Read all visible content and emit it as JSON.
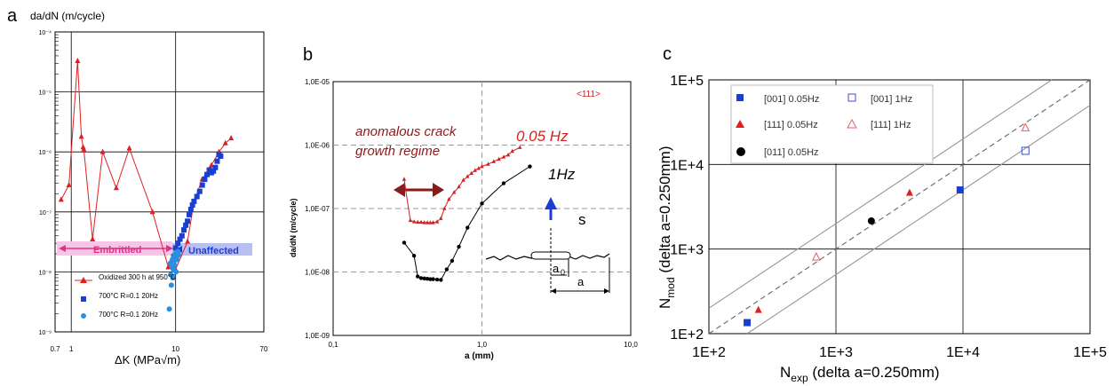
{
  "chart_data": [
    {
      "panel": "a",
      "type": "scatter",
      "ylabel": "da/dN (m/cycle)",
      "xlabel": "ΔK (MPa√m)",
      "x_scale": "log",
      "y_scale": "log",
      "xlim": [
        0.7,
        70
      ],
      "ylim": [
        1e-09,
        0.0001
      ],
      "x_ticks": [
        "0.7",
        "1",
        "10",
        "70"
      ],
      "y_ticks": [
        "10⁻⁴",
        "10⁻⁵",
        "10⁻⁶",
        "10⁻⁷",
        "10⁻⁸",
        "10⁻⁹"
      ],
      "series": [
        {
          "name": "Oxidized 300 h at 950°C",
          "color": "#e02020",
          "marker": "triangle",
          "line": true,
          "x": [
            0.8,
            0.95,
            1.15,
            1.25,
            1.3,
            1.32,
            1.6,
            2.0,
            2.7,
            3.6,
            6.0,
            8.5,
            10.0,
            13.0,
            15.0,
            18.0,
            22.0,
            26.0,
            30.0,
            34.0
          ],
          "y": [
            1.6e-07,
            2.8e-07,
            3.3e-05,
            1.8e-06,
            1.2e-06,
            1.1e-06,
            3.5e-08,
            1e-06,
            2.5e-07,
            1.15e-06,
            1e-07,
            1.2e-08,
            1.1e-08,
            3.2e-08,
            1.5e-07,
            3.5e-07,
            6e-07,
            1e-06,
            1.4e-06,
            1.7e-06
          ]
        },
        {
          "name": "700°C R=0.1 20Hz",
          "color": "#1a3fcf",
          "marker": "square",
          "line": false,
          "x": [
            9.2,
            9.6,
            10.0,
            10.5,
            11.0,
            11.5,
            12.0,
            12.5,
            13.0,
            13.5,
            14.0,
            14.5,
            15.0,
            16.0,
            17.0,
            18.0,
            19.0,
            20.0,
            21.0,
            22.0,
            23.0,
            24.0,
            25.0,
            26.0,
            27.0
          ],
          "y": [
            1.4e-08,
            1.8e-08,
            2.5e-08,
            3e-08,
            3.5e-08,
            4e-08,
            5e-08,
            6e-08,
            7e-08,
            9e-08,
            1.1e-07,
            1.3e-07,
            1.5e-07,
            1.8e-07,
            2.2e-07,
            2.8e-07,
            3.5e-07,
            4.2e-07,
            5e-07,
            4.5e-07,
            4.8e-07,
            5.5e-07,
            7e-07,
            9e-07,
            8.5e-07
          ]
        },
        {
          "name": "700°C R=0.1 20Hz",
          "color": "#2a8fe0",
          "marker": "circle",
          "line": false,
          "x": [
            8.7,
            8.9,
            9.0,
            9.1,
            9.2,
            9.3,
            9.4,
            9.5,
            9.6,
            9.7,
            9.8,
            9.9,
            10.0,
            10.1,
            10.3,
            10.5,
            10.7
          ],
          "y": [
            2.4e-09,
            1.4e-08,
            9e-09,
            6e-09,
            1.2e-08,
            1.6e-08,
            8e-09,
            1.1e-08,
            1.5e-08,
            1.8e-08,
            1.3e-08,
            2e-08,
            1.7e-08,
            1e-08,
            1.6e-08,
            2.2e-08,
            1.9e-08
          ]
        }
      ],
      "annotations": [
        "Embrittled",
        "Unaffected"
      ]
    },
    {
      "panel": "b",
      "type": "line",
      "ylabel": "da/dN (m/cycle)",
      "xlabel": "a (mm)",
      "x_scale": "log",
      "y_scale": "log",
      "xlim": [
        0.1,
        10
      ],
      "ylim": [
        1e-09,
        1e-05
      ],
      "x_ticks": [
        "0,1",
        "1,0",
        "10,0"
      ],
      "y_ticks": [
        "1,0E-05",
        "1,0E-06",
        "1,0E-07",
        "1,0E-08",
        "1,0E-09"
      ],
      "series": [
        {
          "name": "0.05 Hz",
          "color": "#d42020",
          "marker": "triangle",
          "x": [
            0.3,
            0.33,
            0.35,
            0.37,
            0.39,
            0.41,
            0.43,
            0.45,
            0.47,
            0.5,
            0.53,
            0.56,
            0.6,
            0.65,
            0.7,
            0.75,
            0.8,
            0.85,
            0.9,
            0.95,
            1.0,
            1.1,
            1.2,
            1.3,
            1.4,
            1.5,
            1.6,
            1.8
          ],
          "y": [
            2.9e-07,
            6.5e-08,
            6.2e-08,
            6.1e-08,
            6.1e-08,
            6e-08,
            6e-08,
            6e-08,
            6e-08,
            6.2e-08,
            7e-08,
            1e-07,
            1.4e-07,
            1.8e-07,
            2.2e-07,
            2.8e-07,
            3.2e-07,
            3.6e-07,
            4e-07,
            4.3e-07,
            4.6e-07,
            5e-07,
            5.5e-07,
            6e-07,
            6.5e-07,
            7e-07,
            8e-07,
            9.2e-07
          ]
        },
        {
          "name": "1Hz",
          "color": "#000000",
          "marker": "circle",
          "x": [
            0.3,
            0.35,
            0.37,
            0.39,
            0.41,
            0.43,
            0.45,
            0.47,
            0.5,
            0.53,
            0.58,
            0.63,
            0.7,
            0.8,
            1.0,
            1.4,
            2.1
          ],
          "y": [
            2.9e-08,
            1.8e-08,
            8.5e-09,
            8e-09,
            7.9e-09,
            7.8e-09,
            7.7e-09,
            7.7e-09,
            7.6e-09,
            7.5e-09,
            1.1e-08,
            1.5e-08,
            2.5e-08,
            5e-08,
            1.2e-07,
            2.5e-07,
            4.6e-07
          ]
        }
      ],
      "annotations": [
        "<111>",
        "anomalous crack",
        "growth regime",
        "0.05 Hz",
        "1Hz",
        "s",
        "a",
        "0"
      ]
    },
    {
      "panel": "c",
      "type": "scatter",
      "xlabel": "N",
      "xlabel_sub": "exp",
      "xlabel_rest": " (delta a=0.250mm)",
      "ylabel": "N",
      "ylabel_sub": "mod",
      "ylabel_rest": " (delta a=0.250mm)",
      "x_scale": "log",
      "y_scale": "log",
      "xlim": [
        100,
        100000
      ],
      "ylim": [
        100,
        100000
      ],
      "x_ticks": [
        "1E+2",
        "1E+3",
        "1E+4",
        "1E+5"
      ],
      "y_ticks": [
        "1E+5",
        "1E+4",
        "1E+3",
        "1E+2"
      ],
      "series": [
        {
          "name": "[001] 0.05Hz",
          "color": "#1a3fcf",
          "marker": "square",
          "filled": true,
          "x": [
            200,
            9500
          ],
          "y": [
            135,
            5000
          ]
        },
        {
          "name": "[001] 1Hz",
          "color": "#3a4fcf",
          "marker": "square",
          "filled": false,
          "x": [
            31000
          ],
          "y": [
            14500
          ]
        },
        {
          "name": "[111] 0.05Hz",
          "color": "#e02020",
          "marker": "triangle",
          "filled": true,
          "x": [
            245,
            3800
          ],
          "y": [
            190,
            4600
          ]
        },
        {
          "name": "[111] 1Hz",
          "color": "#e06060",
          "marker": "triangle",
          "filled": false,
          "x": [
            700,
            31000
          ],
          "y": [
            800,
            27000
          ]
        },
        {
          "name": "[011] 0.05Hz",
          "color": "#000000",
          "marker": "circle",
          "filled": true,
          "x": [
            1900
          ],
          "y": [
            2150
          ]
        }
      ],
      "reference_lines": [
        "y = x (dashed)",
        "y = 2x",
        "y = x/2"
      ]
    }
  ],
  "labels": {
    "panel_a": "a",
    "panel_b": "b",
    "panel_c": "c"
  }
}
